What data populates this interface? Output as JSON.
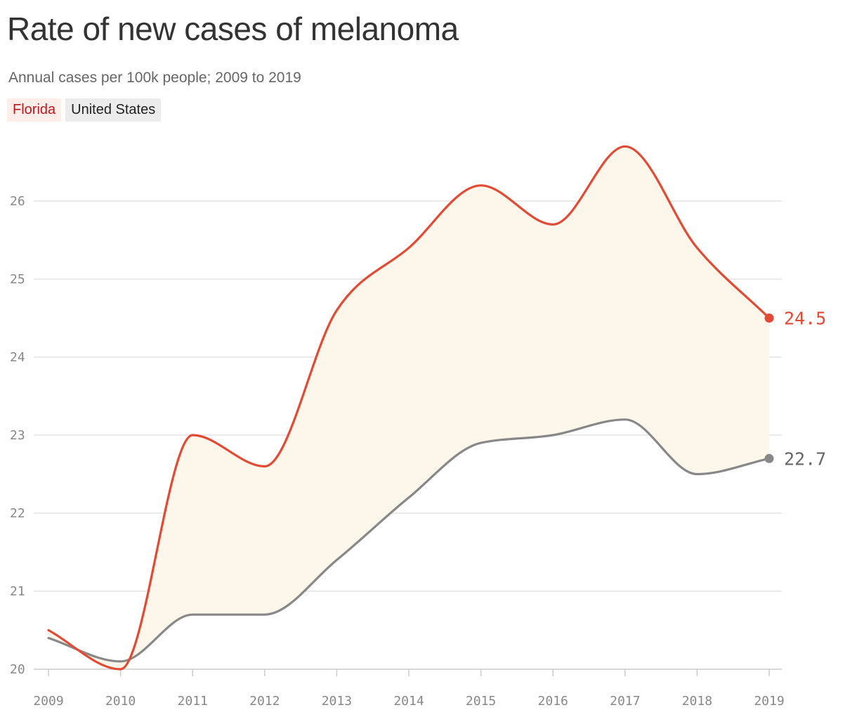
{
  "title": "Rate of new cases of melanoma",
  "subtitle": "Annual cases per 100k people; 2009 to 2019",
  "legend": [
    {
      "label": "Florida",
      "color": "#c0141f",
      "background": "#fdeeea"
    },
    {
      "label": "United States",
      "color": "#222222",
      "background": "#ececec"
    }
  ],
  "chart_data": {
    "type": "line",
    "x": [
      "2009",
      "2010",
      "2011",
      "2012",
      "2013",
      "2014",
      "2015",
      "2016",
      "2017",
      "2018",
      "2019"
    ],
    "series": [
      {
        "name": "Florida",
        "color": "#e24a33",
        "values": [
          20.5,
          20.0,
          23.0,
          22.6,
          24.6,
          25.4,
          26.2,
          25.7,
          26.7,
          25.4,
          24.5
        ],
        "end_label": "24.5"
      },
      {
        "name": "United States",
        "color": "#888888",
        "values": [
          20.4,
          20.1,
          20.7,
          20.7,
          21.4,
          22.2,
          22.9,
          23.0,
          23.2,
          22.5,
          22.7
        ],
        "end_label": "22.7"
      }
    ],
    "band_fill": "#fdf6ea",
    "yticks": [
      "20",
      "21",
      "22",
      "23",
      "24",
      "25",
      "26"
    ],
    "ylim": [
      20,
      26.8
    ],
    "grid": true
  }
}
